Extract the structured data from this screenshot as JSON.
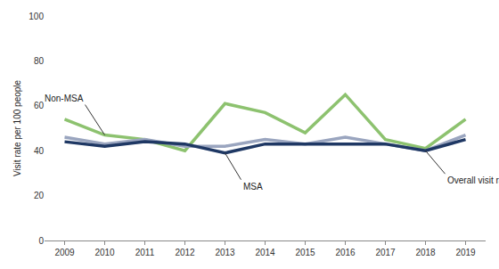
{
  "chart_data": {
    "type": "line",
    "y_label": "Visit rate per 100 people",
    "categories": [
      "2009",
      "2010",
      "2011",
      "2012",
      "2013",
      "2014",
      "2015",
      "2016",
      "2017",
      "2018",
      "2019"
    ],
    "series": [
      {
        "name": "Non-MSA",
        "color": "#8dc26f",
        "values": [
          54,
          47,
          45,
          40,
          61,
          57,
          48,
          65,
          45,
          41,
          54
        ]
      },
      {
        "name": "Overall visit rate",
        "color": "#9aa5bf",
        "values": [
          46,
          43,
          45,
          42,
          42,
          45,
          43,
          46,
          43,
          40,
          47
        ]
      },
      {
        "name": "MSA",
        "color": "#1f3864",
        "values": [
          44,
          42,
          44,
          43,
          39,
          43,
          43,
          43,
          43,
          40,
          45
        ]
      }
    ],
    "annotations": [
      {
        "text": "Non-MSA",
        "x": "2010"
      },
      {
        "text": "MSA",
        "x": "2013"
      },
      {
        "text": "Overall visit rate",
        "x": "2018"
      }
    ],
    "ylim": [
      0,
      100
    ],
    "yticks": [
      0,
      20,
      40,
      60,
      80,
      100
    ],
    "grid": false
  }
}
